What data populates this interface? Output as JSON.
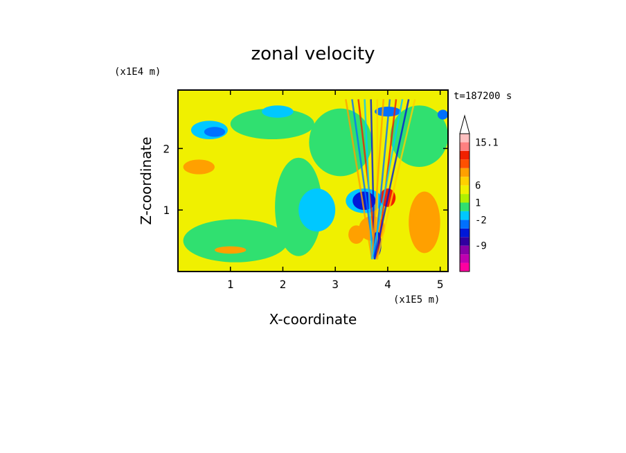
{
  "chart_data": {
    "type": "heatmap",
    "title": "zonal velocity",
    "xlabel": "X-coordinate",
    "ylabel": "Z-coordinate",
    "x_scale_label": "(x1E5 m)",
    "y_scale_label": "(x1E4 m)",
    "time_label": "t=187200 s",
    "xlim": [
      0,
      5.15
    ],
    "ylim": [
      0,
      2.95
    ],
    "x_ticks": [
      1,
      2,
      3,
      4,
      5
    ],
    "y_ticks": [
      1,
      2
    ],
    "colorbar": {
      "tick_labels": [
        "15.1",
        "6",
        "1",
        "-2",
        "-9"
      ],
      "colors": [
        "#ff00a0",
        "#c000b0",
        "#8800a8",
        "#3000a0",
        "#0018d8",
        "#0070ff",
        "#00c8ff",
        "#30e070",
        "#b0f000",
        "#f0f000",
        "#ffd000",
        "#ffa000",
        "#ff5000",
        "#f02000",
        "#ff8080",
        "#ffc0c0"
      ],
      "extend": "max-triangle"
    },
    "regions": [
      {
        "kind": "background",
        "level": "yellow"
      },
      {
        "cx": 1.1,
        "cz": 0.5,
        "rx": 1.0,
        "rz": 0.35,
        "level": "green"
      },
      {
        "cx": 2.3,
        "cz": 1.05,
        "rx": 0.45,
        "rz": 0.8,
        "level": "green"
      },
      {
        "cx": 3.1,
        "cz": 2.1,
        "rx": 0.6,
        "rz": 0.55,
        "level": "green"
      },
      {
        "cx": 1.8,
        "cz": 2.4,
        "rx": 0.8,
        "rz": 0.25,
        "level": "green"
      },
      {
        "cx": 4.6,
        "cz": 2.2,
        "rx": 0.55,
        "rz": 0.5,
        "level": "green"
      },
      {
        "cx": 0.6,
        "cz": 2.3,
        "rx": 0.35,
        "rz": 0.15,
        "level": "cyan"
      },
      {
        "cx": 0.7,
        "cz": 2.27,
        "rx": 0.2,
        "rz": 0.08,
        "level": "blue"
      },
      {
        "cx": 2.65,
        "cz": 1.0,
        "rx": 0.35,
        "rz": 0.35,
        "level": "cyan"
      },
      {
        "cx": 1.9,
        "cz": 2.6,
        "rx": 0.3,
        "rz": 0.1,
        "level": "cyan"
      },
      {
        "cx": 0.4,
        "cz": 1.7,
        "rx": 0.3,
        "rz": 0.12,
        "level": "orange"
      },
      {
        "cx": 1.0,
        "cz": 0.35,
        "rx": 0.3,
        "rz": 0.06,
        "level": "orange"
      },
      {
        "cx": 3.55,
        "cz": 1.15,
        "rx": 0.35,
        "rz": 0.2,
        "level": "cyan"
      },
      {
        "cx": 3.55,
        "cz": 1.15,
        "rx": 0.22,
        "rz": 0.15,
        "level": "darkblue"
      },
      {
        "cx": 4.0,
        "cz": 1.2,
        "rx": 0.15,
        "rz": 0.15,
        "level": "red"
      },
      {
        "cx": 3.7,
        "cz": 0.7,
        "rx": 0.25,
        "rz": 0.2,
        "level": "orange"
      },
      {
        "cx": 3.4,
        "cz": 0.6,
        "rx": 0.15,
        "rz": 0.15,
        "level": "orange"
      },
      {
        "cx": 3.8,
        "cz": 0.45,
        "rx": 0.08,
        "rz": 0.2,
        "level": "darkblue"
      },
      {
        "cx": 4.7,
        "cz": 0.8,
        "rx": 0.3,
        "rz": 0.5,
        "level": "orange"
      },
      {
        "cx": 5.05,
        "cz": 2.55,
        "rx": 0.1,
        "rz": 0.08,
        "level": "blue"
      },
      {
        "cx": 4.0,
        "cz": 2.6,
        "rx": 0.25,
        "rz": 0.08,
        "level": "blue"
      }
    ]
  }
}
